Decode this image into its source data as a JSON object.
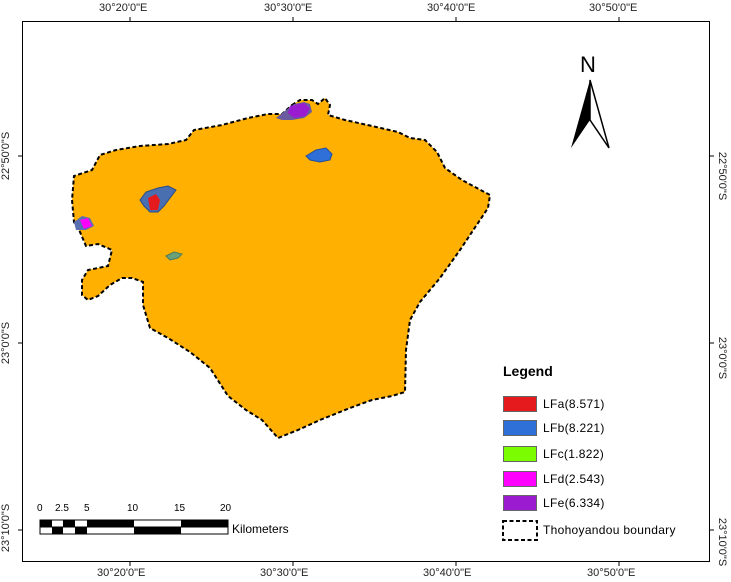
{
  "map": {
    "top_labels": [
      "30°20'0\"E",
      "30°30'0\"E",
      "30°40'0\"E",
      "30°50'0\"E"
    ],
    "bottom_labels": [
      "30°20'0\"E",
      "30°30'0\"E",
      "30°40'0\"E",
      "30°50'0\"E"
    ],
    "left_labels": [
      "22°50'0\"S",
      "23°0'0\"S",
      "23°10'0\"S"
    ],
    "right_labels": [
      "22°50'0\"S",
      "23°0'0\"S",
      "23°10'0\"S"
    ],
    "north_letter": "N",
    "fill_color": "#FFB000"
  },
  "legend": {
    "title": "Legend",
    "items": [
      {
        "label": "LFa(8.571)",
        "color": "#E41A1C"
      },
      {
        "label": "LFb(8.221)",
        "color": "#2E6FD8"
      },
      {
        "label": "LFc(1.822)",
        "color": "#7CFC00"
      },
      {
        "label": "LFd(2.543)",
        "color": "#FF00FF"
      },
      {
        "label": "LFe(6.334)",
        "color": "#9B1BD1"
      }
    ],
    "boundary_label": "Thohoyandou boundary"
  },
  "scale_bar": {
    "ticks": [
      "0",
      "2.5",
      "5",
      "10",
      "15",
      "20"
    ],
    "units": "Kilometers"
  }
}
